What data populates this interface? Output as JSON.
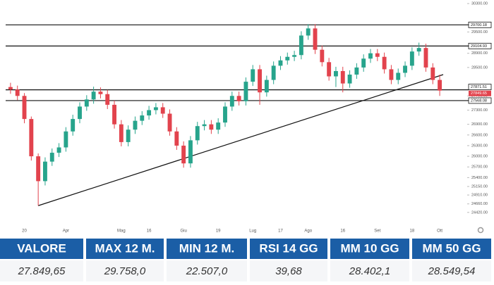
{
  "chart_data": {
    "type": "candlestick",
    "categories": [
      null,
      null,
      "20",
      null,
      null,
      null,
      null,
      null,
      "Apr",
      null,
      null,
      null,
      null,
      null,
      null,
      null,
      "Mag",
      null,
      null,
      null,
      "16",
      null,
      null,
      null,
      null,
      "Giu",
      null,
      null,
      null,
      null,
      "19",
      null,
      null,
      null,
      null,
      "Lug",
      null,
      null,
      null,
      "17",
      null,
      null,
      null,
      "Ago",
      null,
      null,
      null,
      null,
      "16",
      null,
      null,
      null,
      null,
      "Set",
      null,
      null,
      null,
      null,
      "18",
      null,
      null,
      null,
      "Ott"
    ],
    "open": [
      27950,
      27880,
      27700,
      27050,
      26000,
      25300,
      25850,
      26100,
      26250,
      26700,
      27050,
      27400,
      27600,
      27820,
      27750,
      27450,
      26900,
      26400,
      26750,
      27000,
      27150,
      27300,
      27380,
      27200,
      26700,
      26300,
      25800,
      26450,
      26850,
      26900,
      26750,
      26950,
      27400,
      27700,
      27550,
      28100,
      28450,
      27800,
      28150,
      28550,
      28700,
      28800,
      28850,
      29400,
      29600,
      29000,
      28650,
      28250,
      28400,
      28050,
      28300,
      28500,
      28750,
      28900,
      28800,
      28450,
      28150,
      28350,
      28550,
      28950,
      29050,
      28500,
      28150
    ],
    "high": [
      28070,
      27990,
      27780,
      27120,
      26080,
      25970,
      26220,
      26370,
      26820,
      27170,
      27520,
      27720,
      27960,
      27940,
      27870,
      27570,
      27020,
      26870,
      27120,
      27270,
      27420,
      27500,
      27500,
      27320,
      26820,
      26420,
      26570,
      26970,
      27020,
      27020,
      27070,
      27520,
      27820,
      27820,
      28220,
      28570,
      28570,
      28270,
      28670,
      28820,
      28920,
      28970,
      29520,
      29720,
      29720,
      29120,
      28770,
      28520,
      28520,
      28420,
      28620,
      28870,
      29020,
      29020,
      28920,
      28570,
      28470,
      28670,
      29070,
      29200,
      29170,
      28620,
      28300
    ],
    "low": [
      27760,
      27580,
      26930,
      25880,
      24610,
      25180,
      25730,
      25980,
      26130,
      26580,
      26930,
      27280,
      27480,
      27630,
      27330,
      26780,
      26280,
      26280,
      26630,
      26880,
      27030,
      27180,
      27080,
      26580,
      26180,
      25680,
      25680,
      26330,
      26730,
      26630,
      26630,
      26830,
      27280,
      27430,
      27430,
      27980,
      27450,
      27680,
      28030,
      28430,
      28580,
      28680,
      28730,
      29280,
      28880,
      28530,
      28130,
      27950,
      27800,
      27930,
      28180,
      28380,
      28630,
      28680,
      28330,
      28030,
      28030,
      28230,
      28430,
      28830,
      28380,
      28030,
      27700
    ],
    "close": [
      27880,
      27700,
      27050,
      26000,
      25300,
      25850,
      26100,
      26250,
      26700,
      27050,
      27400,
      27600,
      27820,
      27750,
      27450,
      26900,
      26400,
      26750,
      27000,
      27150,
      27300,
      27380,
      27200,
      26700,
      26300,
      25800,
      26450,
      26850,
      26900,
      26750,
      26950,
      27400,
      27700,
      27550,
      28100,
      28450,
      27800,
      28150,
      28550,
      28700,
      28800,
      28850,
      29400,
      29600,
      29000,
      28650,
      28250,
      28400,
      28050,
      28300,
      28500,
      28750,
      28900,
      28800,
      28450,
      28150,
      28350,
      28550,
      28950,
      29050,
      28500,
      28150,
      27849.65
    ],
    "up_color": "#27a48c",
    "down_color": "#e2434d",
    "ylim": [
      24100,
      30400
    ],
    "yticks": [
      {
        "value": 30300,
        "label": "30300.00"
      },
      {
        "value": 29500,
        "label": "29500.00"
      },
      {
        "value": 28900,
        "label": "28900.00"
      },
      {
        "value": 28500,
        "label": "28500.00"
      },
      {
        "value": 27700,
        "label": "27700.00"
      },
      {
        "value": 27300,
        "label": "27300.00"
      },
      {
        "value": 26900,
        "label": "26900.00"
      },
      {
        "value": 26600,
        "label": "26600.00"
      },
      {
        "value": 26300,
        "label": "26300.00"
      },
      {
        "value": 26000,
        "label": "26000.00"
      },
      {
        "value": 25700,
        "label": "25700.00"
      },
      {
        "value": 25400,
        "label": "25400.00"
      },
      {
        "value": 25150,
        "label": "25150.00"
      },
      {
        "value": 24910,
        "label": "24910.00"
      },
      {
        "value": 24660,
        "label": "24660.00"
      },
      {
        "value": 24420,
        "label": "24420.00"
      }
    ],
    "levels": [
      29700.18,
      29104.93,
      27871.51,
      27568.08
    ],
    "last_price": 27849.65,
    "trendline": {
      "x": [
        4,
        62
      ],
      "values": [
        24610,
        28300
      ]
    },
    "grid": false
  },
  "table": {
    "headers": [
      "VALORE",
      "MAX 12 M.",
      "MIN 12 M.",
      "RSI 14 GG",
      "MM 10 GG",
      "MM 50 GG"
    ],
    "values": [
      "27.849,65",
      "29.758,0",
      "22.507,0",
      "39,68",
      "28.402,1",
      "28.549,54"
    ]
  }
}
